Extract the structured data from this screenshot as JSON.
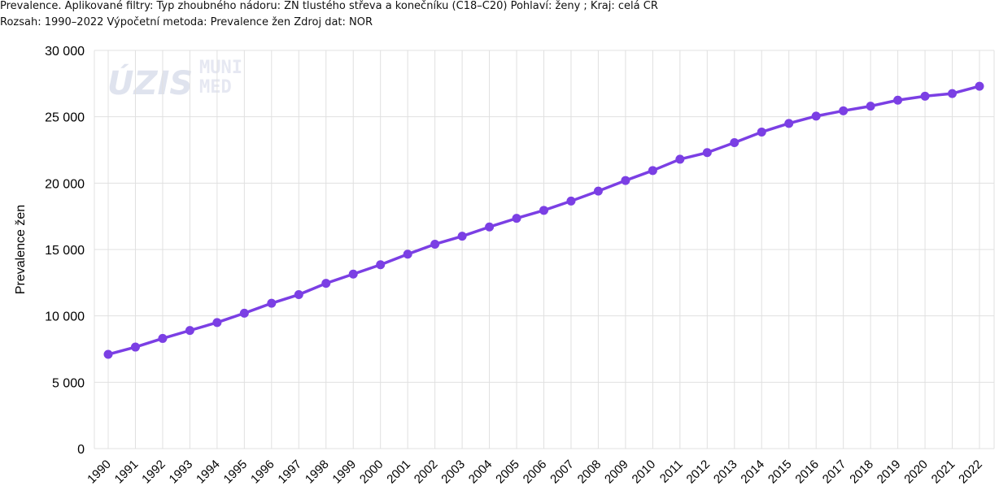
{
  "header": {
    "line1": "Prevalence. Aplikované filtry: Typ zhoubného nádoru: ZN tlustého střeva a konečníku (C18–C20) Pohlaví: ženy ; Kraj: celá ČR",
    "line2": "Rozsah: 1990–2022 Výpočetní metoda: Prevalence žen Zdroj dat: NOR"
  },
  "watermark": {
    "logo1": "ÚZIS",
    "logo2a": "MUNI",
    "logo2b": "MED"
  },
  "colors": {
    "series": "#7b3fe4",
    "grid": "#e0e0e0"
  },
  "chart_data": {
    "type": "line",
    "title": "",
    "xlabel": "",
    "ylabel": "Prevalence žen",
    "ylim": [
      0,
      30000
    ],
    "yticks": [
      0,
      5000,
      10000,
      15000,
      20000,
      25000,
      30000
    ],
    "ytick_labels": [
      "0",
      "5 000",
      "10 000",
      "15 000",
      "20 000",
      "25 000",
      "30 000"
    ],
    "grid": true,
    "legend": "none",
    "categories": [
      "1990",
      "1991",
      "1992",
      "1993",
      "1994",
      "1995",
      "1996",
      "1997",
      "1998",
      "1999",
      "2000",
      "2001",
      "2002",
      "2003",
      "2004",
      "2005",
      "2006",
      "2007",
      "2008",
      "2009",
      "2010",
      "2011",
      "2012",
      "2013",
      "2014",
      "2015",
      "2016",
      "2017",
      "2018",
      "2019",
      "2020",
      "2021",
      "2022"
    ],
    "series": [
      {
        "values": [
          7100,
          7650,
          8300,
          8900,
          9500,
          10200,
          10950,
          11600,
          12450,
          13150,
          13850,
          14650,
          15400,
          16000,
          16700,
          17350,
          17950,
          18650,
          19400,
          20200,
          20950,
          21800,
          22300,
          23050,
          23850,
          24500,
          25050,
          25450,
          25800,
          26250,
          26550,
          26750,
          27300
        ]
      }
    ]
  }
}
